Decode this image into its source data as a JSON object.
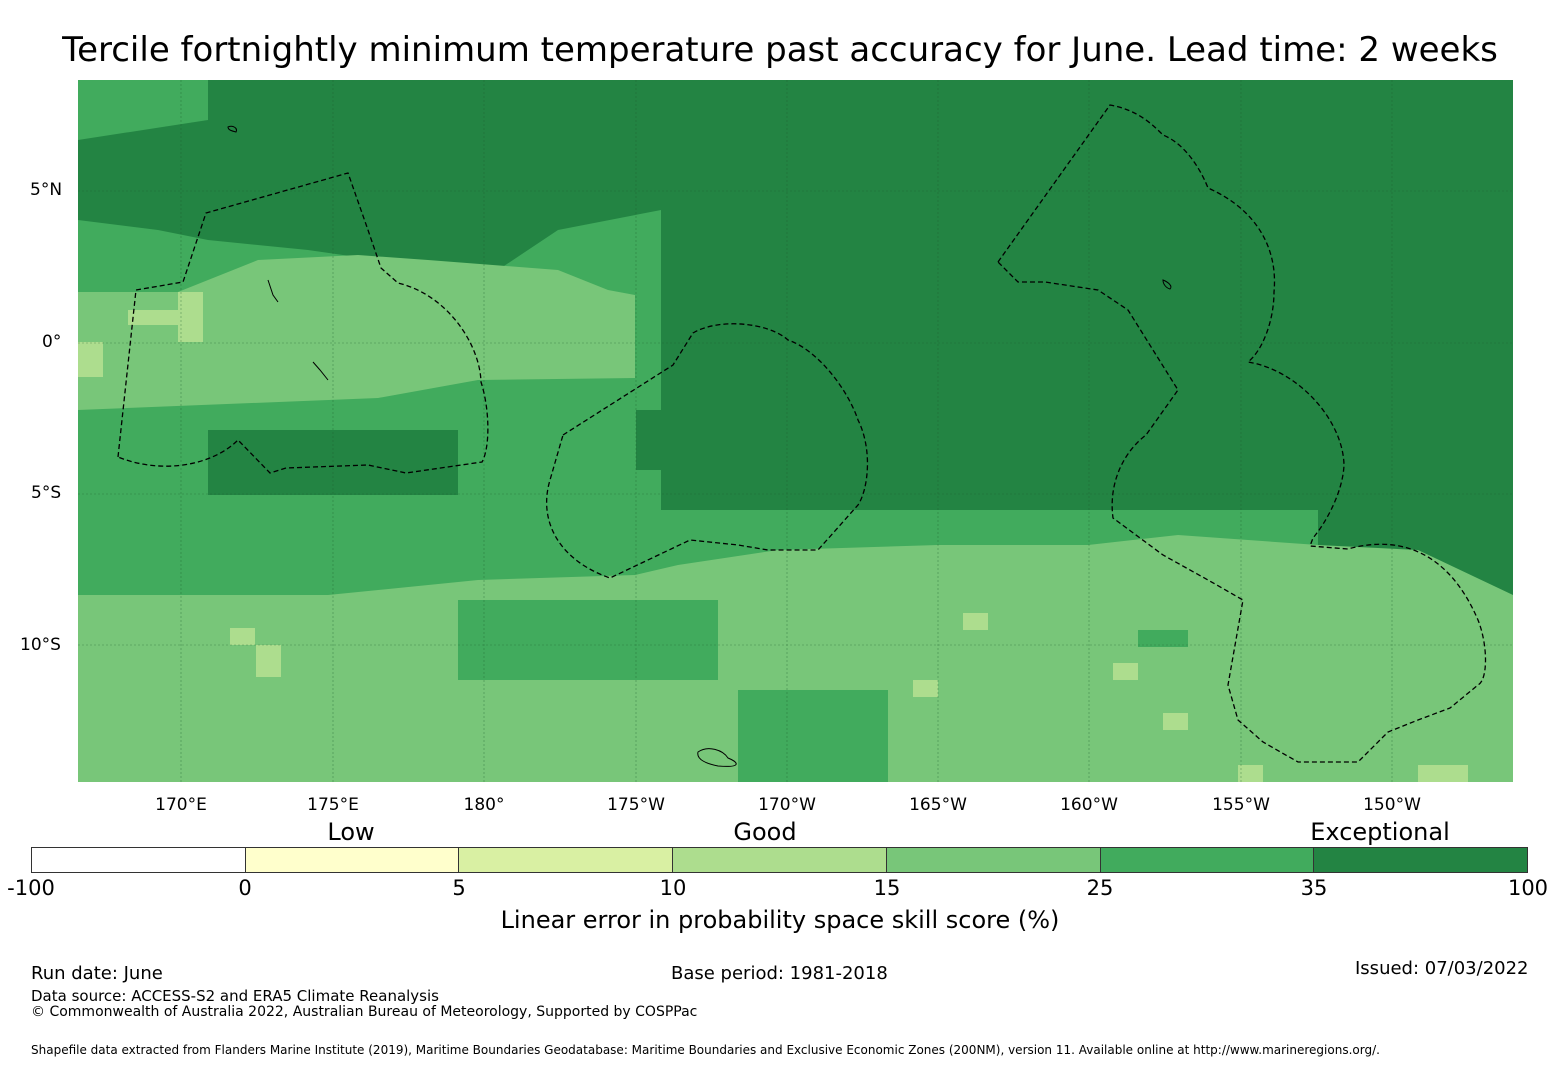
{
  "title": "Tercile fortnightly minimum temperature past accuracy for June. Lead time: 2 weeks",
  "map": {
    "lat_labels": [
      "5°N",
      "0°",
      "5°S",
      "10°S"
    ],
    "lon_labels": [
      "170°E",
      "175°E",
      "180°",
      "175°W",
      "170°W",
      "165°W",
      "160°W",
      "155°W",
      "150°W"
    ],
    "background_color": "#41ab5d"
  },
  "legend": {
    "categories": [
      "Low",
      "Good",
      "Exceptional"
    ],
    "ticks": [
      "-100",
      "0",
      "5",
      "10",
      "15",
      "25",
      "35",
      "100"
    ],
    "colors": [
      "#ffffff",
      "#ffffcc",
      "#d9f0a3",
      "#addd8e",
      "#78c679",
      "#41ab5d",
      "#238443"
    ],
    "title": "Linear error in probability space skill score (%)"
  },
  "footer": {
    "run_date": "Run date: June",
    "base_period": "Base period: 1981-2018",
    "issued": "Issued: 07/03/2022",
    "data_source": "Data source: ACCESS-S2 and ERA5 Climate Reanalysis",
    "copyright": "© Commonwealth of Australia 2022, Australian Bureau of Meteorology, Supported by COSPPac",
    "shapefile": "Shapefile data extracted from Flanders Marine Institute (2019), Maritime Boundaries Geodatabase: Maritime Boundaries and Exclusive Economic Zones (200NM), version 11. Available online at http://www.marineregions.org/."
  }
}
